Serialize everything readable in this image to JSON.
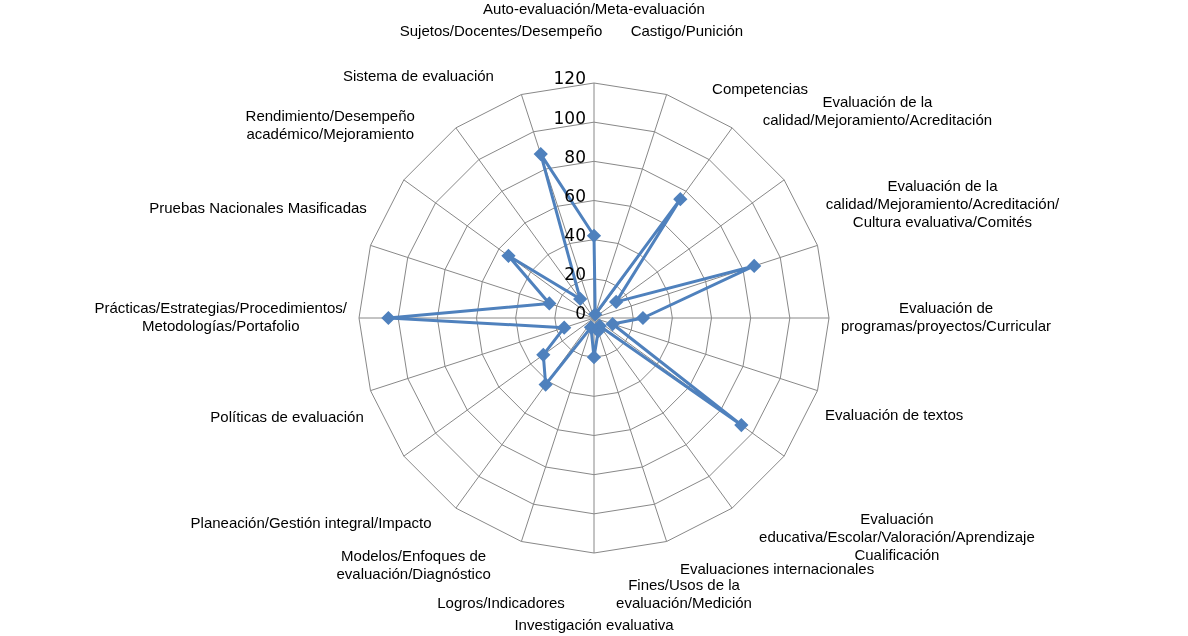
{
  "chart_data": {
    "type": "radar",
    "categories": [
      "Auto-evaluación/Meta-evaluación",
      "Castigo/Punición",
      "Competencias",
      "Evaluación de la calidad/Mejoramiento/Acreditación",
      "Evaluación de la calidad/Mejoramiento/Acreditación/ Cultura evaluativa/Comités",
      "Evaluación de programas/proyectos/Curricular",
      "Evaluación de textos",
      "Evaluación educativa/Escolar/Valoración/Aprendizaje Cualificación",
      "Evaluaciones internacionales",
      "Fines/Usos de la evaluación/Medición",
      "Investigación evaluativa",
      "Logros/Indicadores",
      "Modelos/Enfoques de evaluación/Diagnóstico",
      "Planeación/Gestión integral/Impacto",
      "Políticas de evaluación",
      "Prácticas/Estrategias/Procedimientos/ Metodologías/Portafolio",
      "Pruebas Nacionales Masificadas",
      "Rendimiento/Desempeño académico/Mejoramiento",
      "Sistema de evaluación",
      "Sujetos/Docentes/Desempeño"
    ],
    "series": [
      {
        "color": "#4f81bd",
        "values": [
          42,
          2,
          75,
          14,
          86,
          25,
          10,
          93,
          5,
          7,
          20,
          5,
          42,
          32,
          16,
          105,
          24,
          54,
          12,
          88
        ]
      }
    ],
    "ylim": [
      0,
      120
    ],
    "yticks": [
      0,
      20,
      40,
      60,
      80,
      100,
      120
    ],
    "grid": true,
    "legend": false,
    "marker": "diamond",
    "line_style": "solid"
  }
}
